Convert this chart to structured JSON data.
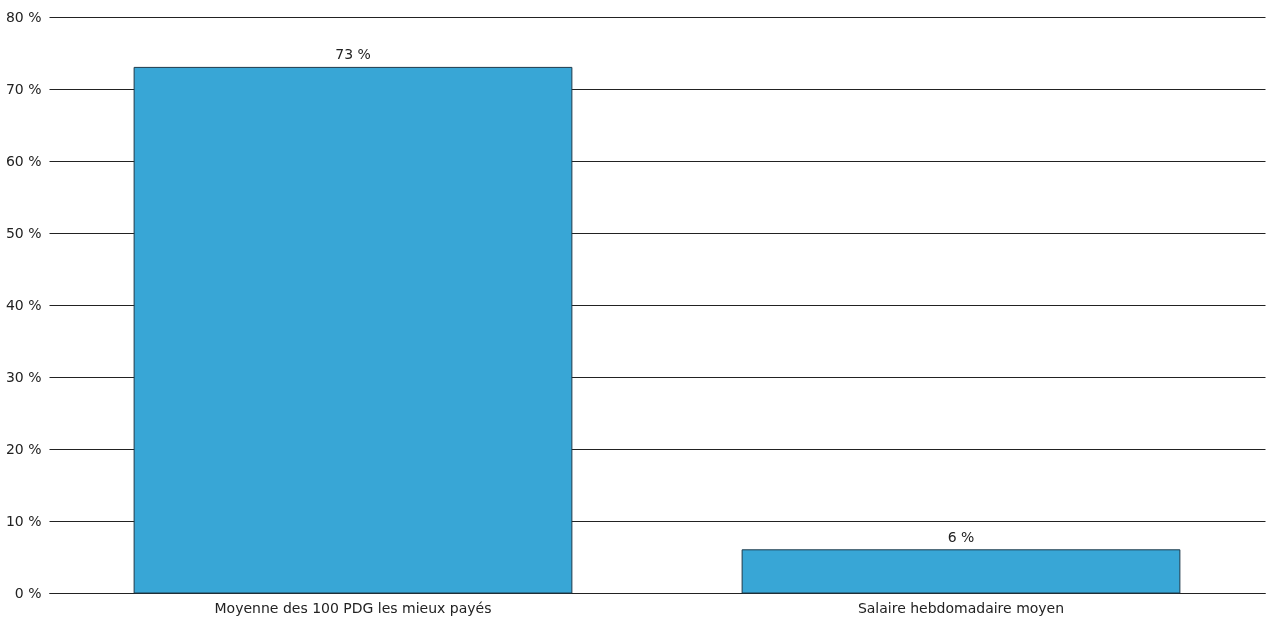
{
  "chart_data": {
    "type": "bar",
    "categories": [
      "Moyenne des 100 PDG les mieux payés",
      "Salaire hebdomadaire moyen"
    ],
    "values": [
      73,
      6
    ],
    "value_labels": [
      "73 %",
      "6 %"
    ],
    "color": "#38a6d6",
    "ylim": [
      0,
      80
    ],
    "yticks": [
      {
        "value": 0,
        "label": "0 %"
      },
      {
        "value": 10,
        "label": "10 %"
      },
      {
        "value": 20,
        "label": "20 %"
      },
      {
        "value": 30,
        "label": "30 %"
      },
      {
        "value": 40,
        "label": "40 %"
      },
      {
        "value": 50,
        "label": "50 %"
      },
      {
        "value": 60,
        "label": "60 %"
      },
      {
        "value": 70,
        "label": "70 %"
      },
      {
        "value": 80,
        "label": "80 %"
      }
    ],
    "grid": "y"
  }
}
